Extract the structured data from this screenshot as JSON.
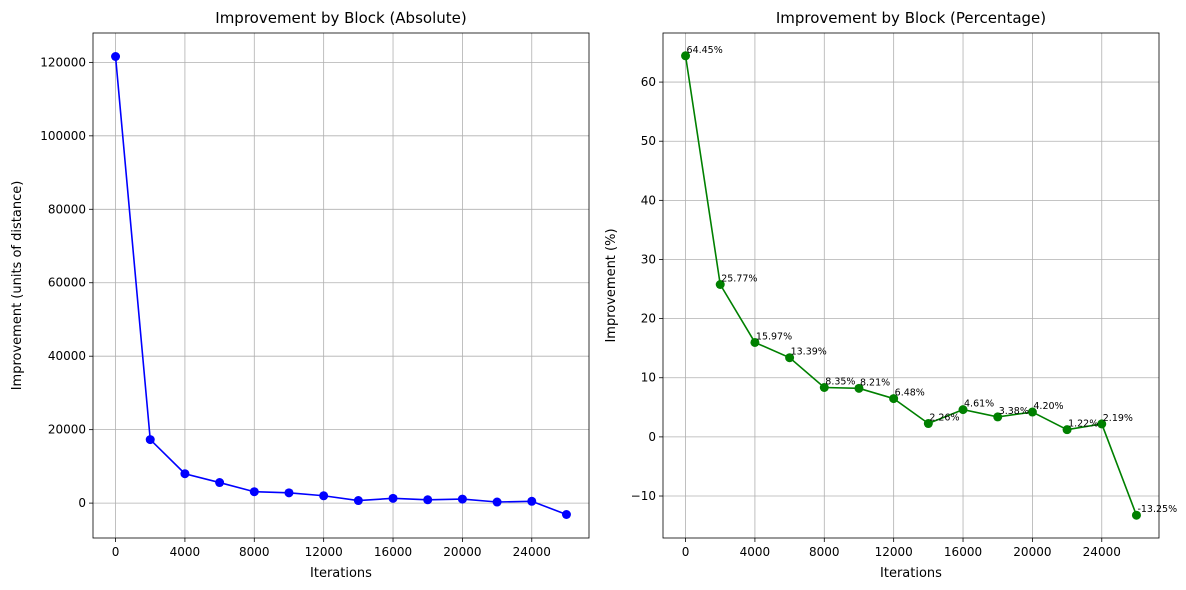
{
  "chart_data": [
    {
      "type": "line",
      "title": "Improvement by Block (Absolute)",
      "xlabel": "Iterations",
      "ylabel": "Improvement (units of distance)",
      "xlim": [
        -1300,
        27300
      ],
      "ylim": [
        -9500,
        128000
      ],
      "xticks": [
        0,
        4000,
        8000,
        12000,
        16000,
        20000,
        24000
      ],
      "yticks": [
        0,
        20000,
        40000,
        60000,
        80000,
        100000,
        120000
      ],
      "grid": true,
      "color": "#0000ff",
      "series": [
        {
          "x": [
            0,
            2000,
            4000,
            6000,
            8000,
            10000,
            12000,
            14000,
            16000,
            18000,
            20000,
            22000,
            24000,
            26000
          ],
          "y": [
            121600,
            17300,
            8000,
            5600,
            3100,
            2800,
            2000,
            700,
            1300,
            900,
            1100,
            300,
            500,
            -3100
          ]
        }
      ],
      "annotations": []
    },
    {
      "type": "line",
      "title": "Improvement by Block (Percentage)",
      "xlabel": "Iterations",
      "ylabel": "Improvement (%)",
      "xlim": [
        -1300,
        27300
      ],
      "ylim": [
        -17.1,
        68.3
      ],
      "xticks": [
        0,
        4000,
        8000,
        12000,
        16000,
        20000,
        24000
      ],
      "yticks": [
        -10,
        0,
        10,
        20,
        30,
        40,
        50,
        60
      ],
      "grid": true,
      "color": "#008000",
      "series": [
        {
          "x": [
            0,
            2000,
            4000,
            6000,
            8000,
            10000,
            12000,
            14000,
            16000,
            18000,
            20000,
            22000,
            24000,
            26000
          ],
          "y": [
            64.45,
            25.77,
            15.97,
            13.39,
            8.35,
            8.21,
            6.48,
            2.26,
            4.61,
            3.38,
            4.2,
            1.22,
            2.19,
            -13.25
          ]
        }
      ],
      "annotations": [
        "64.45%",
        "25.77%",
        "15.97%",
        "13.39%",
        "8.35%",
        "8.21%",
        "6.48%",
        "2.26%",
        "4.61%",
        "3.38%",
        "4.20%",
        "1.22%",
        "2.19%",
        "-13.25%"
      ]
    }
  ]
}
